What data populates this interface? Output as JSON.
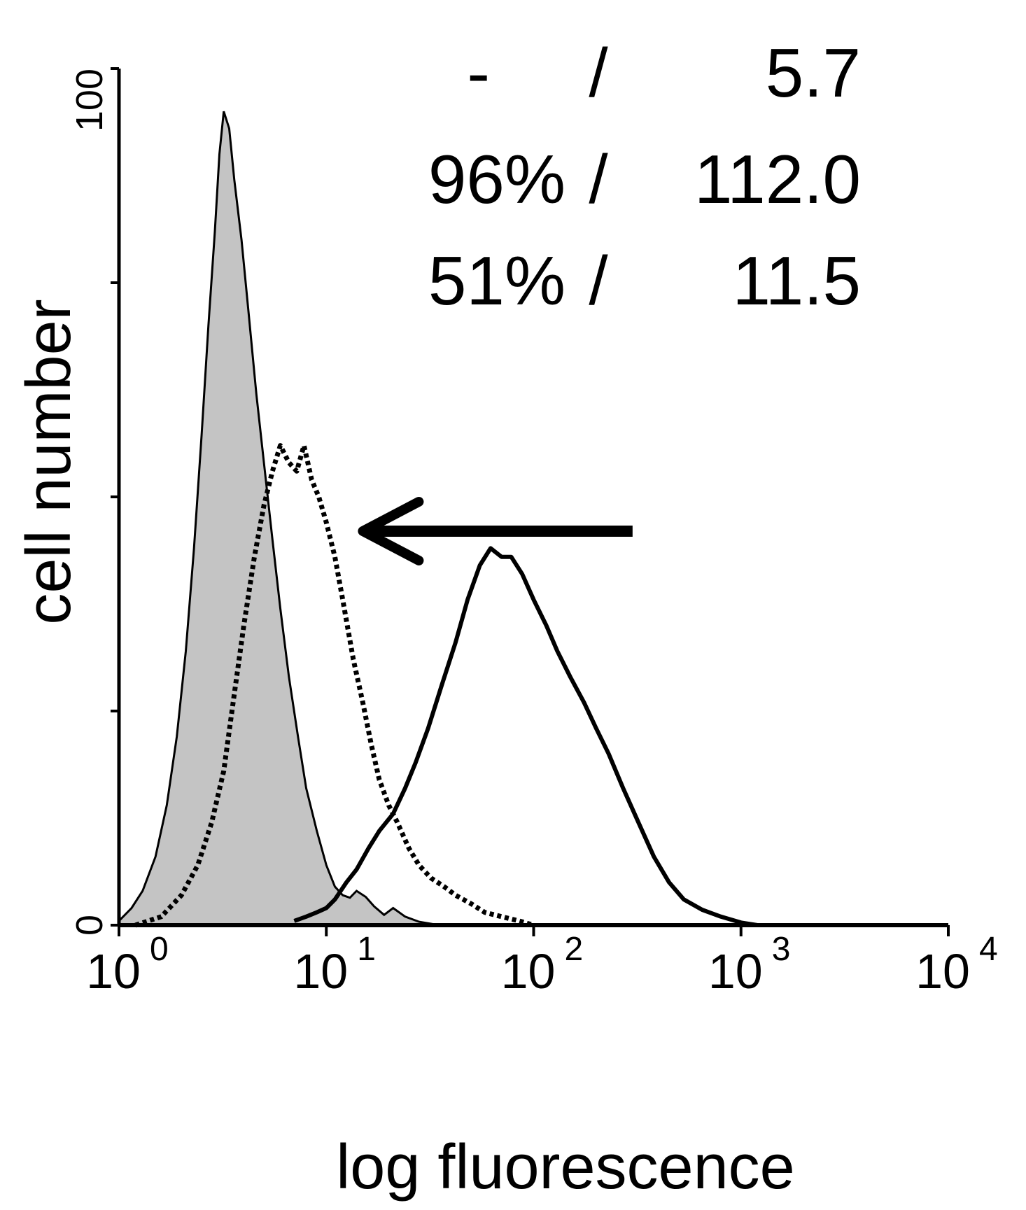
{
  "chart_data": {
    "type": "area",
    "title": "",
    "xlabel": "log fluorescence",
    "ylabel": "cell number",
    "xscale": "log",
    "xlim": [
      1,
      10000
    ],
    "ylim": [
      0,
      100
    ],
    "x_ticks": [
      {
        "base": "10",
        "exp": "0",
        "value": 1
      },
      {
        "base": "10",
        "exp": "1",
        "value": 10
      },
      {
        "base": "10",
        "exp": "2",
        "value": 100
      },
      {
        "base": "10",
        "exp": "3",
        "value": 1000
      },
      {
        "base": "10",
        "exp": "4",
        "value": 10000
      }
    ],
    "y_ticks": [
      {
        "label": "0",
        "value": 0
      },
      {
        "label": "",
        "value": 25
      },
      {
        "label": "",
        "value": 50
      },
      {
        "label": "",
        "value": 75
      },
      {
        "label": "100",
        "value": 100
      }
    ],
    "grid": false,
    "annotations": [
      {
        "left": "-",
        "sep": "/",
        "right": "5.7"
      },
      {
        "left": "96%",
        "sep": "/",
        "right": "112.0"
      },
      {
        "left": "51%",
        "sep": "/",
        "right": "11.5"
      }
    ],
    "arrow": {
      "direction": "left",
      "from_x": 300,
      "to_x": 15,
      "y": 46
    },
    "series": [
      {
        "style": "shaded-gray",
        "color": "#c4c4c4",
        "x": [
          1,
          1.15,
          1.3,
          1.5,
          1.7,
          1.9,
          2.1,
          2.3,
          2.5,
          2.7,
          2.9,
          3.05,
          3.2,
          3.4,
          3.6,
          3.9,
          4.2,
          4.6,
          5.0,
          5.5,
          6.0,
          6.6,
          7.3,
          8.0,
          9.0,
          10,
          11,
          12,
          13,
          14,
          15.5,
          17,
          19,
          21,
          24,
          28,
          35
        ],
        "y": [
          0.5,
          2,
          4,
          8,
          14,
          22,
          32,
          44,
          57,
          70,
          81,
          90,
          95,
          93,
          87,
          80,
          72,
          62,
          54,
          45,
          37,
          29,
          22,
          16,
          11,
          7,
          4.5,
          3.5,
          3.2,
          4,
          3.3,
          2.2,
          1.2,
          2,
          1,
          0.4,
          0
        ]
      },
      {
        "style": "dotted-black",
        "color": "#000000",
        "x": [
          1.2,
          1.6,
          2.0,
          2.4,
          2.8,
          3.2,
          3.6,
          4.0,
          4.5,
          5.0,
          5.5,
          6.0,
          6.6,
          7.2,
          7.8,
          8.5,
          9.2,
          10,
          11,
          12,
          13.5,
          15,
          16.5,
          18,
          20,
          22,
          25,
          28,
          32,
          37,
          42,
          50,
          58,
          70,
          85,
          100
        ],
        "y": [
          0,
          1,
          3.5,
          7,
          12,
          18,
          27,
          35,
          43,
          49,
          53,
          56,
          54,
          53,
          56,
          52,
          50,
          47,
          43,
          38,
          31,
          26,
          21,
          17,
          14,
          12,
          9,
          7,
          5.5,
          4.5,
          3.5,
          2.5,
          1.5,
          1,
          0.5,
          0
        ]
      },
      {
        "style": "solid-black",
        "color": "#000000",
        "x": [
          7,
          8,
          9,
          10,
          11,
          12.5,
          14,
          16,
          18,
          21,
          24,
          27,
          31,
          36,
          42,
          48,
          55,
          62,
          70,
          78,
          88,
          100,
          115,
          130,
          150,
          175,
          200,
          230,
          270,
          320,
          380,
          450,
          530,
          650,
          800,
          1000,
          1200
        ],
        "y": [
          0.5,
          1,
          1.5,
          2,
          3,
          5,
          6.5,
          9,
          11,
          13,
          16,
          19,
          23,
          28,
          33,
          38,
          42,
          44,
          43,
          43,
          41,
          38,
          35,
          32,
          29,
          26,
          23,
          20,
          16,
          12,
          8,
          5,
          3,
          1.8,
          1,
          0.3,
          0
        ]
      }
    ]
  }
}
